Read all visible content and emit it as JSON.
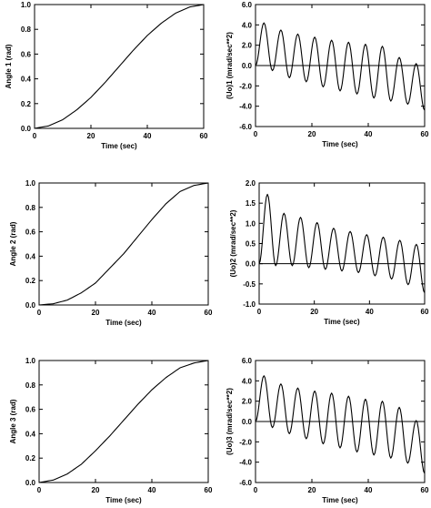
{
  "chart_data": [
    {
      "type": "line",
      "id": "p1",
      "kind": "angle",
      "xlabel": "Time (sec)",
      "ylabel": "Angle 1 (rad)",
      "xlim": [
        0,
        60
      ],
      "ylim": [
        0.0,
        1.0
      ],
      "xticks": [
        0,
        20,
        40,
        60
      ],
      "yticks": [
        0.0,
        0.2,
        0.4,
        0.6,
        0.8,
        1.0
      ],
      "ytick_labels": [
        "0.0",
        "0.2",
        "0.4",
        "0.6",
        "0.8",
        "1.0"
      ],
      "x": [
        0,
        5,
        10,
        15,
        20,
        25,
        30,
        35,
        40,
        45,
        50,
        55,
        60
      ],
      "y": [
        0.0,
        0.02,
        0.07,
        0.15,
        0.25,
        0.37,
        0.5,
        0.63,
        0.75,
        0.85,
        0.93,
        0.98,
        1.0
      ]
    },
    {
      "type": "line",
      "id": "p2",
      "kind": "oscillation",
      "xlabel": "Time (sec)",
      "ylabel": "(Uo)1 (mrad/sec**2)",
      "xlim": [
        0,
        60
      ],
      "ylim": [
        -6.0,
        6.0
      ],
      "xticks": [
        0,
        20,
        40,
        60
      ],
      "yticks": [
        -6.0,
        -4.0,
        -2.0,
        0.0,
        2.0,
        4.0,
        6.0
      ],
      "ytick_labels": [
        "-6.0",
        "-4.0",
        "-2.0",
        "0.0",
        "2.0",
        "4.0",
        "6.0"
      ],
      "period_sec": 6.0,
      "peak_times": [
        3,
        9,
        15,
        21,
        27,
        33,
        39,
        45,
        51,
        57
      ],
      "peaks": [
        4.2,
        3.5,
        3.1,
        2.8,
        2.5,
        2.3,
        2.1,
        1.9,
        0.8,
        0.2
      ],
      "troughs": [
        -0.5,
        -1.2,
        -1.6,
        -2.1,
        -2.5,
        -2.8,
        -3.2,
        -3.5,
        -3.8,
        -4.4
      ]
    },
    {
      "type": "line",
      "id": "p3",
      "kind": "angle",
      "xlabel": "Time (sec)",
      "ylabel": "Angle 2 (rad)",
      "xlim": [
        0,
        60
      ],
      "ylim": [
        0.0,
        1.0
      ],
      "xticks": [
        0,
        20,
        40,
        60
      ],
      "yticks": [
        0.0,
        0.2,
        0.4,
        0.6,
        0.8,
        1.0
      ],
      "ytick_labels": [
        "0.0",
        "0.2",
        "0.4",
        "0.6",
        "0.8",
        "1.0"
      ],
      "x": [
        0,
        5,
        10,
        15,
        20,
        25,
        30,
        35,
        40,
        45,
        50,
        55,
        60
      ],
      "y": [
        0.0,
        0.01,
        0.04,
        0.1,
        0.18,
        0.3,
        0.42,
        0.56,
        0.7,
        0.83,
        0.93,
        0.98,
        1.0
      ]
    },
    {
      "type": "line",
      "id": "p4",
      "kind": "oscillation",
      "xlabel": "Time (sec)",
      "ylabel": "(Uo)2 (mrad/sec**2)",
      "xlim": [
        0,
        60
      ],
      "ylim": [
        -1.0,
        2.0
      ],
      "xticks": [
        0,
        20,
        40,
        60
      ],
      "yticks": [
        -1.0,
        -0.5,
        0.0,
        0.5,
        1.0,
        1.5,
        2.0
      ],
      "ytick_labels": [
        "-1.0",
        "-0.5",
        "0.0",
        "0.5",
        "1.0",
        "1.5",
        "2.0"
      ],
      "period_sec": 6.0,
      "peak_times": [
        3,
        9,
        15,
        21,
        27,
        33,
        39,
        45,
        51,
        57
      ],
      "peaks": [
        1.72,
        1.25,
        1.15,
        1.02,
        0.88,
        0.8,
        0.72,
        0.66,
        0.58,
        0.48
      ],
      "troughs": [
        -0.05,
        -0.05,
        -0.1,
        -0.14,
        -0.18,
        -0.22,
        -0.3,
        -0.38,
        -0.52,
        -0.72
      ]
    },
    {
      "type": "line",
      "id": "p5",
      "kind": "angle",
      "xlabel": "Time (sec)",
      "ylabel": "Angle 3 (rad)",
      "xlim": [
        0,
        60
      ],
      "ylim": [
        0.0,
        1.0
      ],
      "xticks": [
        0,
        20,
        40,
        60
      ],
      "yticks": [
        0.0,
        0.2,
        0.4,
        0.6,
        0.8,
        1.0
      ],
      "ytick_labels": [
        "0.0",
        "0.2",
        "0.4",
        "0.6",
        "0.8",
        "1.0"
      ],
      "x": [
        0,
        5,
        10,
        15,
        20,
        25,
        30,
        35,
        40,
        45,
        50,
        55,
        60
      ],
      "y": [
        0.0,
        0.02,
        0.07,
        0.15,
        0.26,
        0.38,
        0.51,
        0.64,
        0.76,
        0.86,
        0.94,
        0.98,
        1.0
      ]
    },
    {
      "type": "line",
      "id": "p6",
      "kind": "oscillation",
      "xlabel": "Time (sec)",
      "ylabel": "(Uo)3 (mrad/sec**2)",
      "xlim": [
        0,
        60
      ],
      "ylim": [
        -6.0,
        6.0
      ],
      "xticks": [
        0,
        20,
        40,
        60
      ],
      "yticks": [
        -6.0,
        -4.0,
        -2.0,
        0.0,
        2.0,
        4.0,
        6.0
      ],
      "ytick_labels": [
        "-6.0",
        "-4.0",
        "-2.0",
        "0.0",
        "2.0",
        "4.0",
        "6.0"
      ],
      "period_sec": 6.0,
      "peak_times": [
        3,
        9,
        15,
        21,
        27,
        33,
        39,
        45,
        51,
        57
      ],
      "peaks": [
        4.5,
        3.7,
        3.3,
        3.0,
        2.8,
        2.5,
        2.2,
        2.0,
        1.4,
        0.1
      ],
      "troughs": [
        -0.6,
        -1.2,
        -1.7,
        -2.2,
        -2.6,
        -3.0,
        -3.3,
        -3.6,
        -4.1,
        -5.1
      ]
    }
  ]
}
